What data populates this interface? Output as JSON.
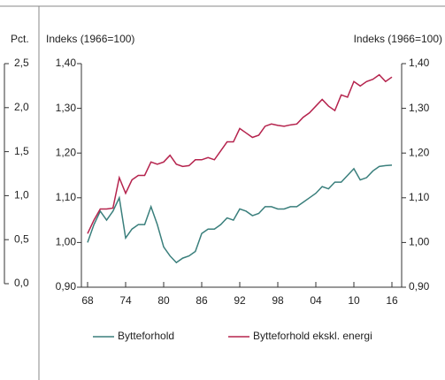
{
  "chart_data": [
    {
      "type": "line",
      "y_label": "Indeks (1966=100)",
      "y2_label": "Indeks (1966=100)",
      "x": [
        1968,
        1969,
        1970,
        1971,
        1972,
        1973,
        1974,
        1975,
        1976,
        1977,
        1978,
        1979,
        1980,
        1981,
        1982,
        1983,
        1984,
        1985,
        1986,
        1987,
        1988,
        1989,
        1990,
        1991,
        1992,
        1993,
        1994,
        1995,
        1996,
        1997,
        1998,
        1999,
        2000,
        2001,
        2002,
        2003,
        2004,
        2005,
        2006,
        2007,
        2008,
        2009,
        2010,
        2011,
        2012,
        2013,
        2014,
        2015,
        2016
      ],
      "xlim": [
        1968,
        2016
      ],
      "xticks": [
        {
          "value": 1968,
          "label": "68"
        },
        {
          "value": 1974,
          "label": "74"
        },
        {
          "value": 1980,
          "label": "80"
        },
        {
          "value": 1986,
          "label": "86"
        },
        {
          "value": 1992,
          "label": "92"
        },
        {
          "value": 1998,
          "label": "98"
        },
        {
          "value": 2004,
          "label": "04"
        },
        {
          "value": 2010,
          "label": "10"
        },
        {
          "value": 2016,
          "label": "16"
        }
      ],
      "ylim": [
        0.9,
        1.4
      ],
      "yticks": [
        {
          "value": 0.9,
          "label": "0,90"
        },
        {
          "value": 1.0,
          "label": "1,00"
        },
        {
          "value": 1.1,
          "label": "1,10"
        },
        {
          "value": 1.2,
          "label": "1,20"
        },
        {
          "value": 1.3,
          "label": "1,30"
        },
        {
          "value": 1.4,
          "label": "1,40"
        }
      ],
      "y2lim": [
        0.9,
        1.4
      ],
      "y2ticks": [
        {
          "value": 0.9,
          "label": "0,90"
        },
        {
          "value": 1.0,
          "label": "1,00"
        },
        {
          "value": 1.1,
          "label": "1,10"
        },
        {
          "value": 1.2,
          "label": "1,20"
        },
        {
          "value": 1.3,
          "label": "1,30"
        },
        {
          "value": 1.4,
          "label": "1,40"
        }
      ],
      "series": [
        {
          "name": "Bytteforhold",
          "color": "#3a7f7c",
          "values": [
            1.0,
            1.04,
            1.07,
            1.05,
            1.07,
            1.1,
            1.01,
            1.03,
            1.04,
            1.04,
            1.08,
            1.04,
            0.99,
            0.97,
            0.955,
            0.965,
            0.97,
            0.98,
            1.02,
            1.03,
            1.03,
            1.04,
            1.055,
            1.05,
            1.075,
            1.07,
            1.06,
            1.065,
            1.08,
            1.08,
            1.075,
            1.075,
            1.08,
            1.08,
            1.09,
            1.1,
            1.11,
            1.125,
            1.12,
            1.135,
            1.135,
            1.15,
            1.165,
            1.14,
            1.145,
            1.16,
            1.17,
            1.172,
            1.173
          ]
        },
        {
          "name": "Bytteforhold ekskl. energi",
          "color": "#b5234d",
          "values": [
            1.02,
            1.05,
            1.075,
            1.075,
            1.077,
            1.145,
            1.11,
            1.14,
            1.15,
            1.15,
            1.18,
            1.175,
            1.18,
            1.195,
            1.175,
            1.17,
            1.172,
            1.185,
            1.185,
            1.19,
            1.185,
            1.205,
            1.225,
            1.225,
            1.255,
            1.245,
            1.235,
            1.24,
            1.26,
            1.265,
            1.262,
            1.26,
            1.263,
            1.265,
            1.28,
            1.29,
            1.305,
            1.32,
            1.305,
            1.295,
            1.33,
            1.325,
            1.36,
            1.35,
            1.36,
            1.365,
            1.375,
            1.36,
            1.37
          ]
        }
      ]
    },
    {
      "type": "axis",
      "y_label": "Pct.",
      "ylim": [
        0,
        2.5
      ],
      "yticks": [
        {
          "value": 2.5,
          "label": "2,5"
        },
        {
          "value": 2.0,
          "label": "2,0"
        },
        {
          "value": 1.5,
          "label": "1,5"
        },
        {
          "value": 1.0,
          "label": "1,0"
        },
        {
          "value": 0.5,
          "label": "0,5"
        },
        {
          "value": 0,
          "label": "0,0"
        }
      ]
    }
  ]
}
